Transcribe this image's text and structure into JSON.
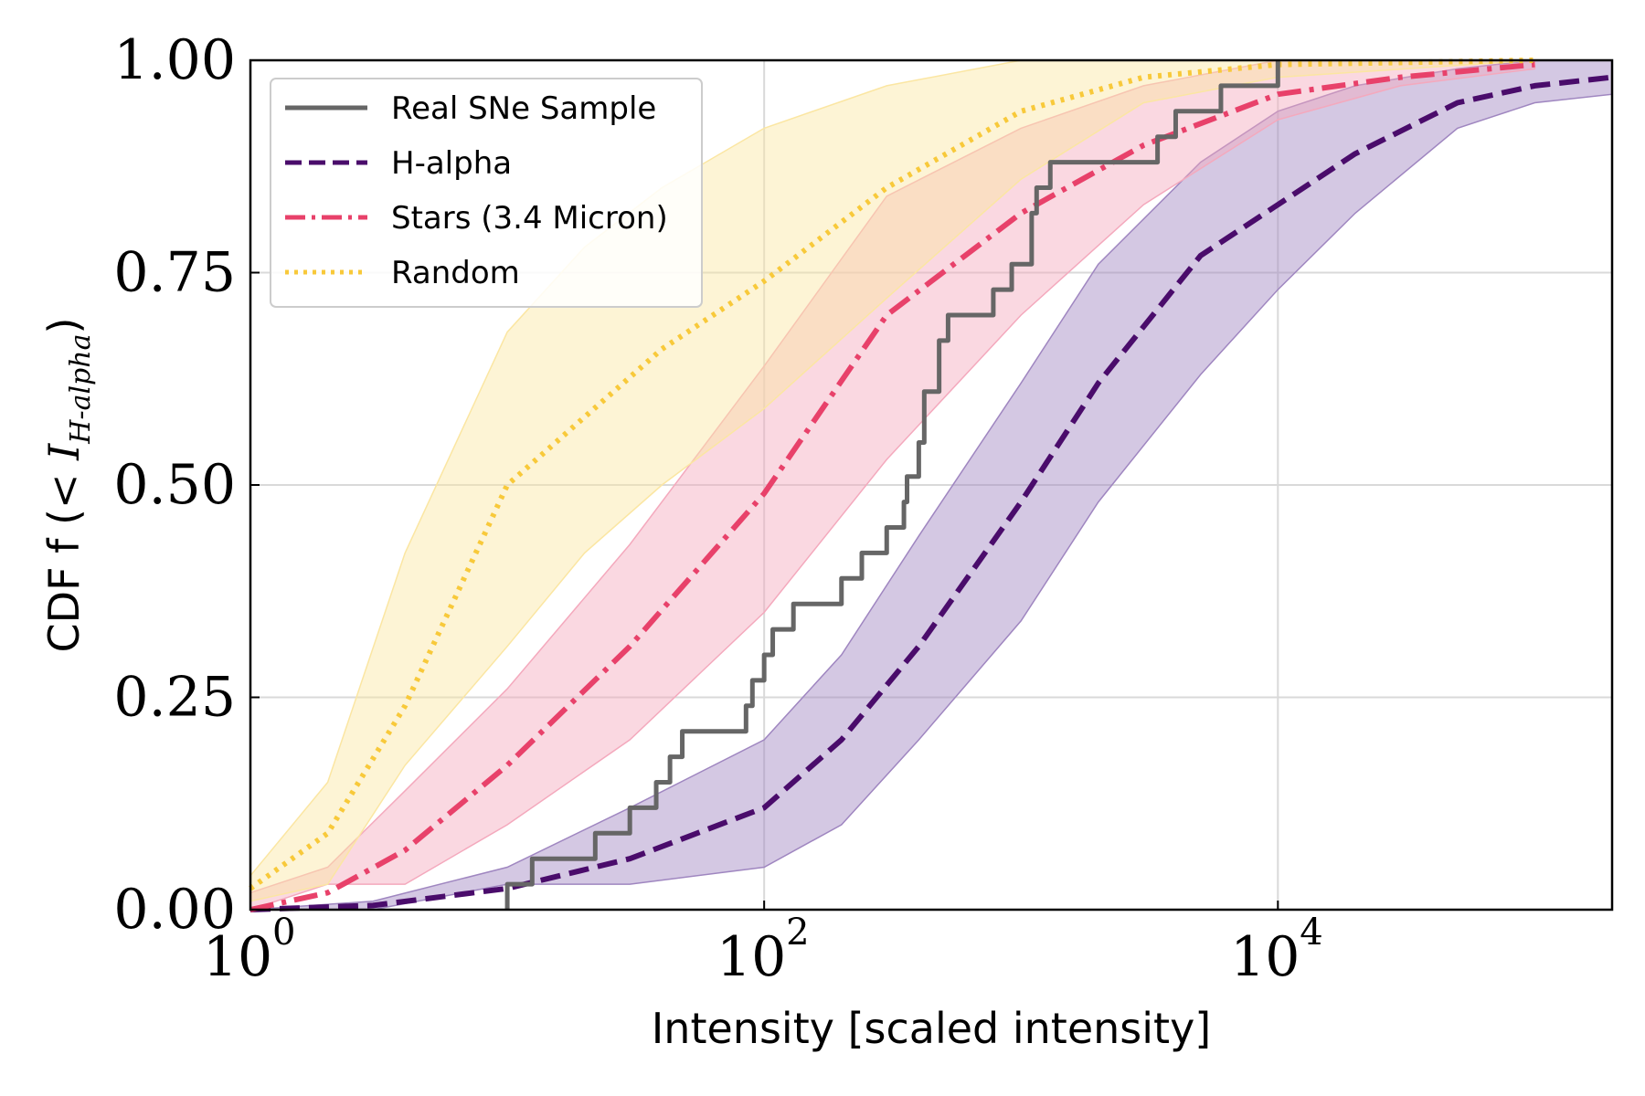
{
  "chart_data": {
    "type": "line",
    "xscale": "log",
    "xlim": [
      1,
      200000
    ],
    "ylim": [
      0,
      1
    ],
    "grid": true,
    "xlabel": "Intensity [scaled intensity]",
    "ylabel_prefix": "CDF f (",
    "ylabel_math": "< I",
    "ylabel_sub": "H-alpha",
    "ylabel_suffix": ")",
    "x_ticks": [
      {
        "value": 1,
        "base": "10",
        "exp": "0"
      },
      {
        "value": 100,
        "base": "10",
        "exp": "2"
      },
      {
        "value": 10000,
        "base": "10",
        "exp": "4"
      }
    ],
    "y_ticks": [
      {
        "value": 0,
        "label": "0.00"
      },
      {
        "value": 0.25,
        "label": "0.25"
      },
      {
        "value": 0.5,
        "label": "0.50"
      },
      {
        "value": 0.75,
        "label": "0.75"
      },
      {
        "value": 1,
        "label": "1.00"
      }
    ],
    "legend_position": "upper-left",
    "series": [
      {
        "name": "Real SNe Sample",
        "color": "#666666",
        "style": "solid",
        "kind": "step",
        "x": [
          10,
          12.5,
          22,
          30,
          38,
          43,
          48,
          85,
          90,
          100,
          108,
          130,
          200,
          240,
          300,
          350,
          360,
          400,
          420,
          480,
          520,
          780,
          920,
          1100,
          1150,
          1300,
          3400,
          4000,
          6000,
          10000
        ],
        "y": [
          0.03,
          0.06,
          0.09,
          0.12,
          0.15,
          0.18,
          0.21,
          0.24,
          0.27,
          0.3,
          0.33,
          0.36,
          0.39,
          0.42,
          0.45,
          0.48,
          0.51,
          0.55,
          0.61,
          0.67,
          0.7,
          0.73,
          0.76,
          0.82,
          0.85,
          0.88,
          0.91,
          0.94,
          0.97,
          1.0
        ]
      },
      {
        "name": "H-alpha",
        "color": "#4a0c6b",
        "band_color": "#9f86c0",
        "style": "dashed",
        "kind": "line",
        "x": [
          1,
          3,
          10,
          30,
          100,
          200,
          400,
          1000,
          2000,
          5000,
          10000,
          20000,
          50000,
          100000,
          200000
        ],
        "y": [
          0,
          0.005,
          0.025,
          0.06,
          0.12,
          0.2,
          0.31,
          0.48,
          0.62,
          0.77,
          0.83,
          0.89,
          0.95,
          0.97,
          0.98
        ],
        "band_upper": [
          0,
          0.01,
          0.05,
          0.12,
          0.2,
          0.3,
          0.44,
          0.62,
          0.76,
          0.88,
          0.94,
          0.97,
          0.99,
          1.0,
          1.0
        ],
        "band_lower": [
          0,
          0.0,
          0.03,
          0.03,
          0.05,
          0.1,
          0.2,
          0.34,
          0.48,
          0.63,
          0.73,
          0.82,
          0.92,
          0.95,
          0.96
        ]
      },
      {
        "name": "Stars (3.4 Micron)",
        "color": "#e8416a",
        "band_color": "#f4a9bd",
        "style": "dashdot",
        "kind": "line",
        "x": [
          1,
          2,
          4,
          10,
          30,
          100,
          300,
          1000,
          3000,
          10000,
          30000,
          100000
        ],
        "y": [
          0,
          0.02,
          0.07,
          0.17,
          0.31,
          0.49,
          0.7,
          0.82,
          0.9,
          0.96,
          0.98,
          0.995
        ],
        "band_upper": [
          0.02,
          0.05,
          0.14,
          0.26,
          0.43,
          0.64,
          0.84,
          0.92,
          0.97,
          1.0,
          1.0,
          1.0
        ],
        "band_lower": [
          0,
          0.03,
          0.03,
          0.1,
          0.2,
          0.35,
          0.53,
          0.7,
          0.83,
          0.93,
          0.97,
          0.99
        ]
      },
      {
        "name": "Random",
        "color": "#f8c93a",
        "band_color": "#fbe6a2",
        "style": "dotted",
        "kind": "line",
        "x": [
          1,
          2,
          4,
          10,
          20,
          40,
          100,
          300,
          1000,
          3000,
          10000,
          100000
        ],
        "y": [
          0.025,
          0.09,
          0.24,
          0.5,
          0.58,
          0.66,
          0.74,
          0.85,
          0.94,
          0.98,
          0.995,
          1.0
        ],
        "band_upper": [
          0.04,
          0.15,
          0.42,
          0.68,
          0.78,
          0.85,
          0.92,
          0.97,
          1.0,
          1.0,
          1.0,
          1.0
        ],
        "band_lower": [
          0.01,
          0.03,
          0.17,
          0.31,
          0.42,
          0.5,
          0.59,
          0.72,
          0.86,
          0.95,
          0.98,
          1.0
        ]
      }
    ]
  }
}
